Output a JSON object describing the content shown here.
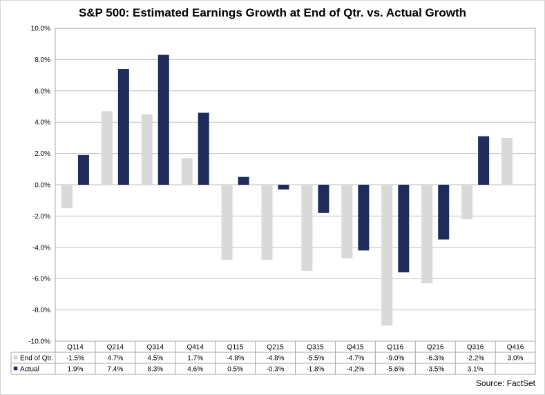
{
  "chart_data": {
    "type": "bar",
    "title": "S&P 500: Estimated Earnings Growth  at End of Qtr. vs. Actual Growth",
    "categories": [
      "Q114",
      "Q214",
      "Q314",
      "Q414",
      "Q115",
      "Q215",
      "Q315",
      "Q415",
      "Q116",
      "Q216",
      "Q316",
      "Q416"
    ],
    "series": [
      {
        "name": "End of Qtr.",
        "color": "#d9d9d9",
        "values": [
          -1.5,
          4.7,
          4.5,
          1.7,
          -4.8,
          -4.8,
          -5.5,
          -4.7,
          -9.0,
          -6.3,
          -2.2,
          3.0
        ],
        "labels": [
          "-1.5%",
          "4.7%",
          "4.5%",
          "1.7%",
          "-4.8%",
          "-4.8%",
          "-5.5%",
          "-4.7%",
          "-9.0%",
          "-6.3%",
          "-2.2%",
          "3.0%"
        ]
      },
      {
        "name": "Actual",
        "color": "#1f2d5c",
        "values": [
          1.9,
          7.4,
          8.3,
          4.6,
          0.5,
          -0.3,
          -1.8,
          -4.2,
          -5.6,
          -3.5,
          3.1,
          null
        ],
        "labels": [
          "1.9%",
          "7.4%",
          "8.3%",
          "4.6%",
          "0.5%",
          "-0.3%",
          "-1.8%",
          "-4.2%",
          "-5.6%",
          "-3.5%",
          "3.1%",
          ""
        ]
      }
    ],
    "ylim": [
      -10,
      10
    ],
    "ytick_values": [
      10,
      8,
      6,
      4,
      2,
      0,
      -2,
      -4,
      -6,
      -8,
      -10
    ],
    "ytick_labels": [
      "10.0%",
      "8.0%",
      "6.0%",
      "4.0%",
      "2.0%",
      "0.0%",
      "-2.0%",
      "-4.0%",
      "-6.0%",
      "-8.0%",
      "-10.0%"
    ],
    "grid": true,
    "legend": "data-table",
    "source": "Source: FactSet"
  }
}
